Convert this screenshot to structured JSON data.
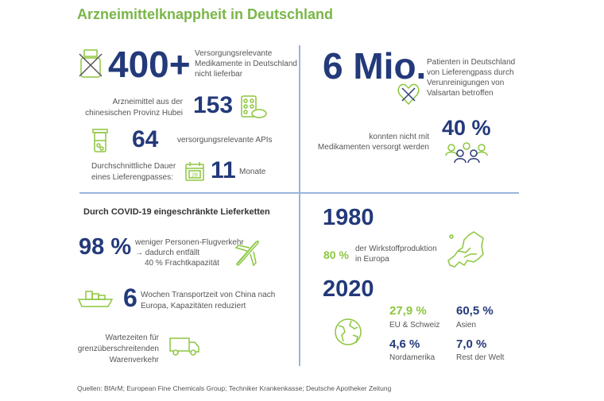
{
  "title": "Arzneimittelknappheit in Deutschland",
  "colors": {
    "navy": "#233a7a",
    "green": "#8dc63f",
    "divider": "#9bb5db"
  },
  "top_left": {
    "stat1": {
      "value": "400+",
      "text": [
        "Versorgungsrelevante",
        "Medikamente in Deutschland",
        "nicht lieferbar"
      ],
      "icon": "crossed-pill-bottle-icon"
    },
    "stat2": {
      "value": "153",
      "text": [
        "Arzneimittel aus der",
        "chinesischen Provinz Hubei"
      ],
      "icon": "pill-blister-icon"
    },
    "stat3": {
      "value": "64",
      "text": "versorgungsrelevante APIs",
      "icon": "beaker-icon"
    },
    "stat4": {
      "value": "11",
      "unit": "Monate",
      "text": [
        "Durchschnittliche Dauer",
        "eines Lieferengpasses:"
      ],
      "icon": "calendar-icon",
      "icon_text": "28"
    }
  },
  "top_right": {
    "stat1": {
      "value": "6 Mio.",
      "text": [
        "Patienten in Deutschland",
        "von Lieferengpass durch",
        "Verunreinigungen von",
        "Valsartan betroffen"
      ],
      "icon": "crossed-heart-icon"
    },
    "stat2": {
      "value": "40 %",
      "text": [
        "konnten nicht mit",
        "Medikamenten versorgt werden"
      ],
      "icon": "people-group-icon"
    }
  },
  "bottom_left": {
    "heading": "Durch COVID-19 eingeschränkte Lieferketten",
    "stat1": {
      "value": "98 %",
      "text": [
        "weniger Personen-Flugverkehr",
        "→ dadurch entfällt",
        "40 % Frachtkapazität"
      ],
      "icon": "airplane-icon"
    },
    "stat2": {
      "value": "6",
      "text": [
        "Wochen Transportzeit von China nach",
        "Europa, Kapazitäten reduziert"
      ],
      "icon": "cargo-ship-icon"
    },
    "stat3": {
      "text": [
        "Wartezeiten für",
        "grenzüberschreitenden",
        "Warenverkehr"
      ],
      "icon": "truck-icon"
    }
  },
  "bottom_right": {
    "year1": "1980",
    "share1980": {
      "value": "80 %",
      "text": [
        "der Wirkstoffproduktion",
        "in Europa"
      ],
      "icon": "europe-map-icon"
    },
    "year2": "2020",
    "shares2020": [
      {
        "value": "27,9 %",
        "label": "EU & Schweiz"
      },
      {
        "value": "60,5 %",
        "label": "Asien"
      },
      {
        "value": "4,6 %",
        "label": "Nordamerika"
      },
      {
        "value": "7,0 %",
        "label": "Rest der Welt"
      }
    ],
    "icon": "globe-icon"
  },
  "sources": "Quellen: BfArM; European Fine Chemicals Group; Techniker Krankenkasse; Deutsche Apotheker Zeitung"
}
